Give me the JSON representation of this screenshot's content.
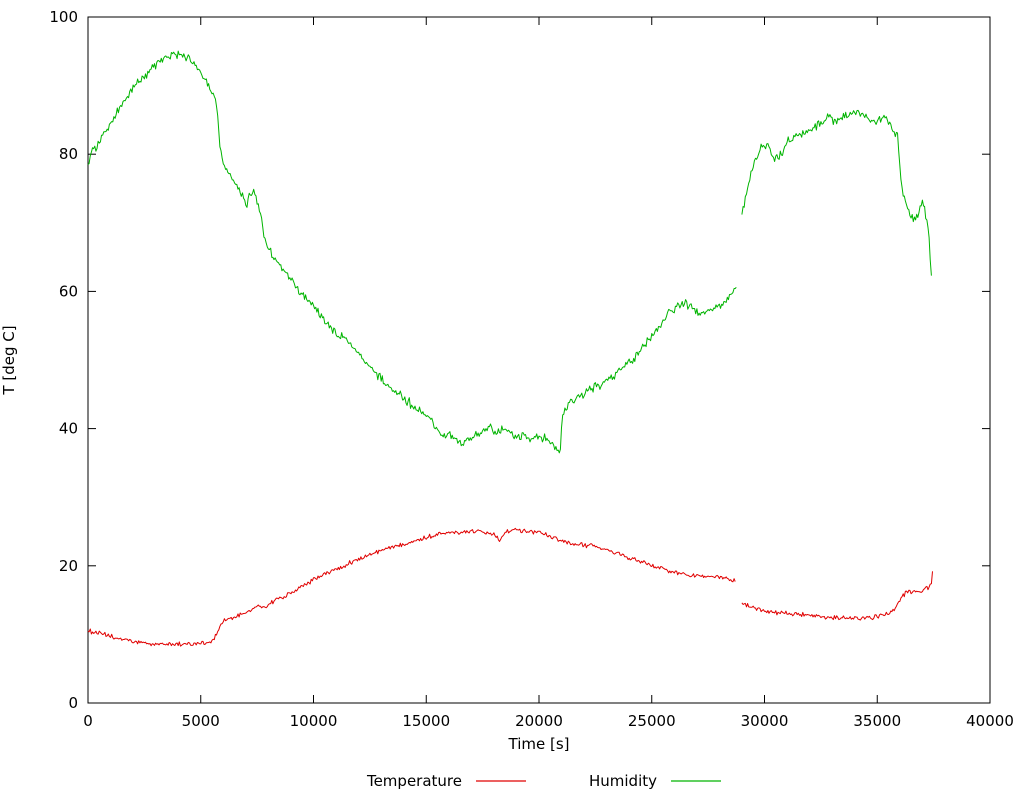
{
  "chart_data": {
    "type": "line",
    "title": "",
    "xlabel": "Time [s]",
    "ylabel": "T [deg C]",
    "xlim": [
      0,
      40000
    ],
    "ylim": [
      0,
      100
    ],
    "xticks": [
      0,
      5000,
      10000,
      15000,
      20000,
      25000,
      30000,
      35000,
      40000
    ],
    "yticks": [
      0,
      20,
      40,
      60,
      80,
      100
    ],
    "grid": false,
    "legend_position": "bottom-center",
    "axis_color": "#000000",
    "background_color": "#ffffff",
    "series": [
      {
        "name": "Temperature",
        "color": "#e00000",
        "noise_band": 0.4,
        "segments": [
          [
            [
              0,
              10.5
            ],
            [
              300,
              10.3
            ],
            [
              700,
              10.0
            ],
            [
              1100,
              9.6
            ],
            [
              1500,
              9.3
            ],
            [
              1900,
              9.0
            ],
            [
              2300,
              8.8
            ],
            [
              2700,
              8.6
            ],
            [
              3100,
              8.6
            ],
            [
              3600,
              8.6
            ],
            [
              4100,
              8.6
            ],
            [
              4600,
              8.6
            ],
            [
              5000,
              8.7
            ],
            [
              5400,
              8.9
            ],
            [
              5600,
              9.3
            ],
            [
              5800,
              10.8
            ],
            [
              6000,
              11.8
            ],
            [
              6200,
              12.2
            ],
            [
              6500,
              12.5
            ],
            [
              6800,
              12.9
            ],
            [
              7100,
              13.3
            ],
            [
              7400,
              13.9
            ],
            [
              7600,
              14.2
            ],
            [
              7800,
              13.9
            ],
            [
              8000,
              14.3
            ],
            [
              8300,
              15.0
            ],
            [
              8600,
              15.4
            ],
            [
              9000,
              16.1
            ],
            [
              9400,
              16.8
            ],
            [
              9800,
              17.6
            ],
            [
              10200,
              18.3
            ],
            [
              10600,
              18.9
            ],
            [
              11000,
              19.5
            ],
            [
              11400,
              20.1
            ],
            [
              11800,
              20.7
            ],
            [
              12200,
              21.2
            ],
            [
              12600,
              21.8
            ],
            [
              13000,
              22.2
            ],
            [
              13400,
              22.6
            ],
            [
              13800,
              23.1
            ],
            [
              14200,
              23.4
            ],
            [
              14600,
              23.8
            ],
            [
              15000,
              24.1
            ],
            [
              15400,
              24.5
            ],
            [
              15800,
              24.9
            ],
            [
              16200,
              25.0
            ],
            [
              16600,
              24.8
            ],
            [
              17000,
              25.0
            ],
            [
              17400,
              25.1
            ],
            [
              17800,
              24.9
            ],
            [
              18100,
              24.4
            ],
            [
              18300,
              23.7
            ],
            [
              18500,
              25.0
            ],
            [
              18900,
              25.3
            ],
            [
              19300,
              25.1
            ],
            [
              19700,
              25.0
            ],
            [
              20100,
              24.8
            ],
            [
              20500,
              24.3
            ],
            [
              20900,
              23.6
            ],
            [
              21300,
              23.3
            ],
            [
              21800,
              23.1
            ],
            [
              22300,
              22.9
            ],
            [
              22800,
              22.5
            ],
            [
              23300,
              22.0
            ],
            [
              23800,
              21.4
            ],
            [
              24300,
              20.8
            ],
            [
              24800,
              20.3
            ],
            [
              25300,
              19.8
            ],
            [
              25800,
              19.2
            ],
            [
              26300,
              18.8
            ],
            [
              26800,
              18.6
            ],
            [
              27300,
              18.6
            ],
            [
              27800,
              18.5
            ],
            [
              28200,
              18.2
            ],
            [
              28500,
              17.9
            ],
            [
              28700,
              17.7
            ]
          ],
          [
            [
              29000,
              14.6
            ],
            [
              29300,
              14.2
            ],
            [
              29700,
              13.7
            ],
            [
              30000,
              13.3
            ],
            [
              30400,
              13.2
            ],
            [
              30800,
              13.1
            ],
            [
              31200,
              13.0
            ],
            [
              31600,
              12.9
            ],
            [
              32000,
              12.7
            ],
            [
              32400,
              12.5
            ],
            [
              32800,
              12.4
            ],
            [
              33200,
              12.4
            ],
            [
              33600,
              12.4
            ],
            [
              34000,
              12.4
            ],
            [
              34400,
              12.4
            ],
            [
              34800,
              12.5
            ],
            [
              35100,
              12.7
            ],
            [
              35400,
              12.9
            ],
            [
              35700,
              13.6
            ],
            [
              35900,
              14.4
            ],
            [
              36100,
              15.6
            ],
            [
              36300,
              16.1
            ],
            [
              36600,
              16.2
            ],
            [
              36900,
              16.4
            ],
            [
              37100,
              16.6
            ],
            [
              37300,
              16.9
            ],
            [
              37400,
              17.3
            ],
            [
              37450,
              19.2
            ]
          ]
        ]
      },
      {
        "name": "Humidity",
        "color": "#00b400",
        "noise_band": 0.8,
        "segments": [
          [
            [
              0,
              78.5
            ],
            [
              150,
              80.3
            ],
            [
              350,
              81.2
            ],
            [
              550,
              82.0
            ],
            [
              750,
              83.3
            ],
            [
              950,
              83.9
            ],
            [
              1150,
              85.2
            ],
            [
              1400,
              86.6
            ],
            [
              1700,
              88.2
            ],
            [
              2000,
              89.6
            ],
            [
              2300,
              90.7
            ],
            [
              2600,
              91.7
            ],
            [
              2900,
              92.7
            ],
            [
              3200,
              93.5
            ],
            [
              3500,
              94.1
            ],
            [
              3800,
              94.5
            ],
            [
              4100,
              94.4
            ],
            [
              4400,
              94.0
            ],
            [
              4700,
              93.0
            ],
            [
              5000,
              91.6
            ],
            [
              5300,
              90.1
            ],
            [
              5500,
              88.9
            ],
            [
              5700,
              87.5
            ],
            [
              5850,
              81.0
            ],
            [
              6000,
              78.8
            ],
            [
              6200,
              77.6
            ],
            [
              6500,
              75.7
            ],
            [
              6800,
              74.2
            ],
            [
              7050,
              72.8
            ],
            [
              7250,
              74.6
            ],
            [
              7450,
              73.8
            ],
            [
              7650,
              71.5
            ],
            [
              7850,
              67.5
            ],
            [
              8050,
              65.8
            ],
            [
              8350,
              64.7
            ],
            [
              8650,
              63.2
            ],
            [
              8950,
              61.8
            ],
            [
              9250,
              60.6
            ],
            [
              9550,
              59.6
            ],
            [
              9900,
              58.3
            ],
            [
              10300,
              56.5
            ],
            [
              10700,
              54.9
            ],
            [
              11100,
              53.7
            ],
            [
              11500,
              52.7
            ],
            [
              11900,
              51.3
            ],
            [
              12300,
              49.8
            ],
            [
              12700,
              48.3
            ],
            [
              13100,
              46.8
            ],
            [
              13500,
              45.7
            ],
            [
              13900,
              44.7
            ],
            [
              14300,
              43.7
            ],
            [
              14700,
              42.7
            ],
            [
              15100,
              41.7
            ],
            [
              15400,
              40.3
            ],
            [
              15700,
              38.9
            ],
            [
              16000,
              39.4
            ],
            [
              16300,
              38.2
            ],
            [
              16600,
              37.6
            ],
            [
              16900,
              38.4
            ],
            [
              17200,
              38.9
            ],
            [
              17500,
              39.4
            ],
            [
              17800,
              40.3
            ],
            [
              18100,
              39.4
            ],
            [
              18400,
              39.9
            ],
            [
              18700,
              39.6
            ],
            [
              19000,
              38.6
            ],
            [
              19300,
              39.4
            ],
            [
              19600,
              38.6
            ],
            [
              19900,
              38.9
            ],
            [
              20200,
              38.6
            ],
            [
              20500,
              37.8
            ],
            [
              20800,
              36.9
            ],
            [
              20950,
              37.2
            ],
            [
              21050,
              42.4
            ],
            [
              21300,
              43.6
            ],
            [
              21600,
              44.1
            ],
            [
              22000,
              45.0
            ],
            [
              22400,
              45.8
            ],
            [
              22800,
              46.6
            ],
            [
              23200,
              47.5
            ],
            [
              23600,
              48.5
            ],
            [
              24000,
              49.6
            ],
            [
              24400,
              51.1
            ],
            [
              24800,
              52.6
            ],
            [
              25200,
              54.2
            ],
            [
              25600,
              56.0
            ],
            [
              25900,
              57.3
            ],
            [
              26200,
              57.9
            ],
            [
              26500,
              58.3
            ],
            [
              26800,
              57.7
            ],
            [
              27100,
              56.9
            ],
            [
              27400,
              57.0
            ],
            [
              27700,
              57.4
            ],
            [
              28000,
              57.9
            ],
            [
              28300,
              58.7
            ],
            [
              28600,
              60.0
            ],
            [
              28750,
              60.6
            ]
          ],
          [
            [
              29000,
              71.2
            ],
            [
              29200,
              74.2
            ],
            [
              29400,
              77.0
            ],
            [
              29600,
              79.3
            ],
            [
              29800,
              80.7
            ],
            [
              30000,
              81.3
            ],
            [
              30200,
              81.0
            ],
            [
              30400,
              79.6
            ],
            [
              30600,
              79.4
            ],
            [
              30800,
              80.6
            ],
            [
              31000,
              81.9
            ],
            [
              31300,
              82.4
            ],
            [
              31600,
              83.0
            ],
            [
              32000,
              83.4
            ],
            [
              32400,
              84.4
            ],
            [
              32800,
              85.4
            ],
            [
              33100,
              85.0
            ],
            [
              33400,
              85.3
            ],
            [
              33700,
              85.7
            ],
            [
              34000,
              86.0
            ],
            [
              34300,
              85.8
            ],
            [
              34600,
              85.1
            ],
            [
              34900,
              84.8
            ],
            [
              35200,
              85.4
            ],
            [
              35500,
              85.0
            ],
            [
              35700,
              83.6
            ],
            [
              35900,
              82.4
            ],
            [
              36050,
              76.5
            ],
            [
              36200,
              73.5
            ],
            [
              36400,
              71.8
            ],
            [
              36600,
              70.7
            ],
            [
              36800,
              71.2
            ],
            [
              37000,
              73.0
            ],
            [
              37150,
              71.3
            ],
            [
              37300,
              68.0
            ],
            [
              37400,
              62.3
            ]
          ]
        ]
      }
    ]
  }
}
